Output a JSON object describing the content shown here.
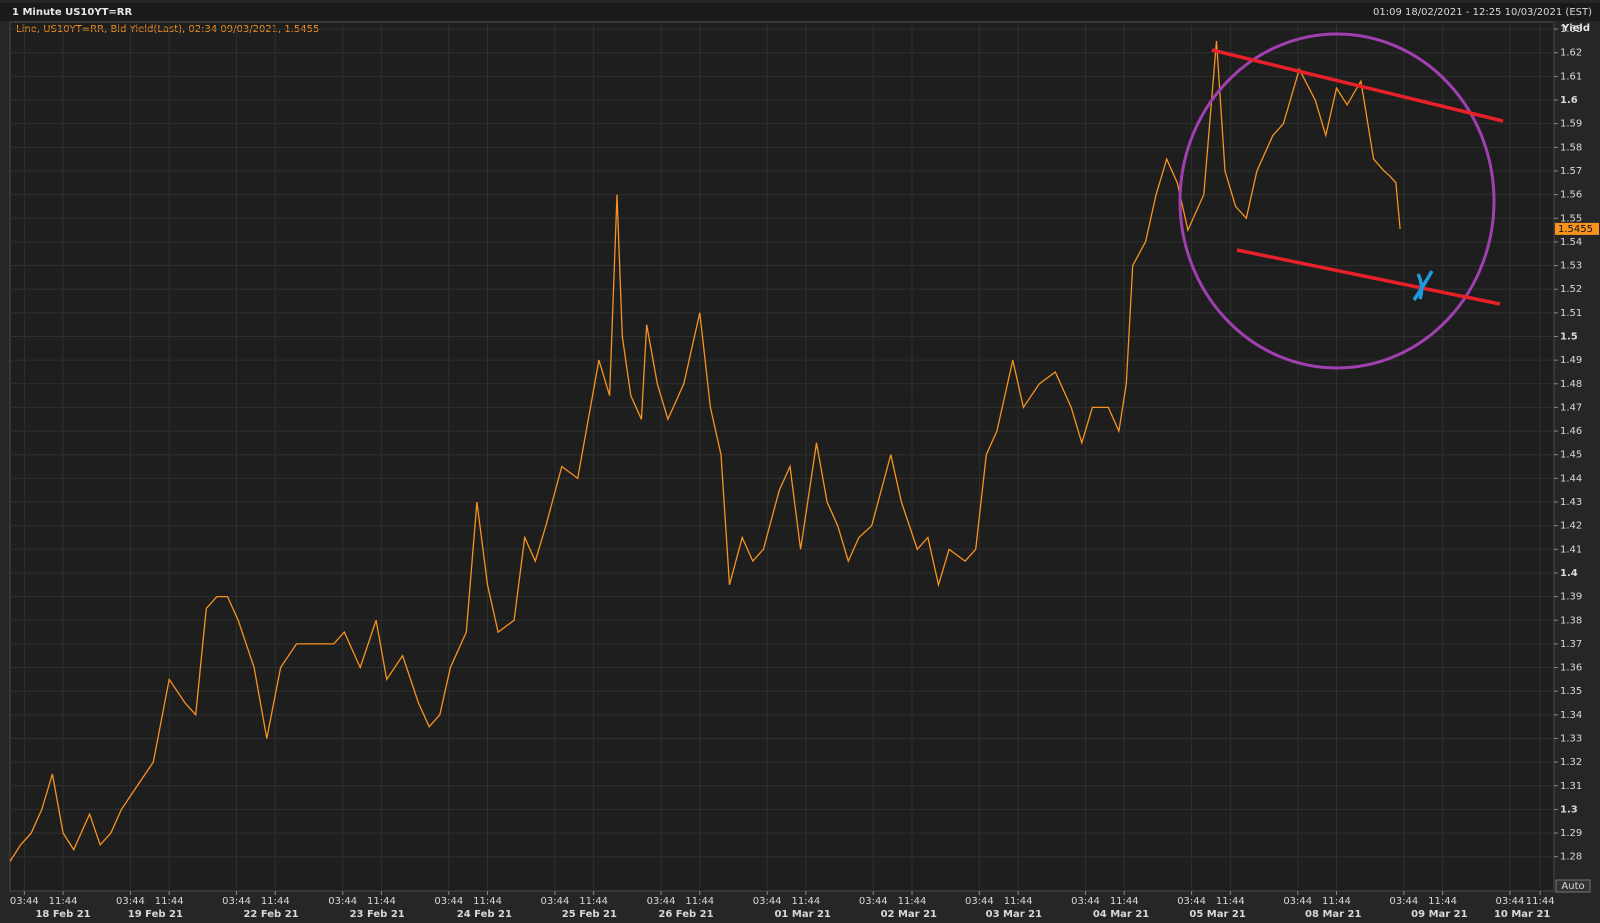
{
  "chart_data": {
    "type": "line",
    "title": "1 Minute US10YT=RR",
    "range_text": "01:09 18/02/2021 - 12:25 10/03/2021 (EST)",
    "y_axis_label": "Yield",
    "button_label": "Auto",
    "grid": true,
    "x": [
      0,
      0.1,
      0.2,
      0.3,
      0.4,
      0.5,
      0.6,
      0.75,
      0.85,
      0.95,
      1.05,
      1.2,
      1.35,
      1.5,
      1.65,
      1.75,
      1.85,
      1.95,
      2.05,
      2.15,
      2.3,
      2.42,
      2.55,
      2.7,
      2.85,
      2.98,
      3.05,
      3.15,
      3.3,
      3.45,
      3.55,
      3.7,
      3.85,
      3.95,
      4.05,
      4.15,
      4.3,
      4.4,
      4.5,
      4.6,
      4.75,
      4.85,
      4.95,
      5.05,
      5.2,
      5.35,
      5.45,
      5.55,
      5.65,
      5.72,
      5.77,
      5.85,
      5.95,
      6.0,
      6.1,
      6.2,
      6.35,
      6.5,
      6.6,
      6.7,
      6.78,
      6.9,
      7.0,
      7.1,
      7.25,
      7.35,
      7.45,
      7.6,
      7.7,
      7.8,
      7.9,
      8.0,
      8.12,
      8.3,
      8.4,
      8.55,
      8.65,
      8.75,
      8.85,
      9.0,
      9.1,
      9.2,
      9.3,
      9.45,
      9.55,
      9.7,
      9.85,
      10.0,
      10.1,
      10.2,
      10.35,
      10.45,
      10.52,
      10.58,
      10.7,
      10.8,
      10.9,
      11.0,
      11.1,
      11.25,
      11.37,
      11.45,
      11.55,
      11.65,
      11.75,
      11.9,
      12.0,
      12.15,
      12.3,
      12.4,
      12.5,
      12.6,
      12.73,
      12.85,
      12.95,
      13.0,
      13.06,
      13.1
    ],
    "series": [
      {
        "name": "Line, US10YT=RR, Bid Yield(Last), 02:34 09/03/2021, 1.5455",
        "color": "#f7931e",
        "values": [
          1.278,
          1.285,
          1.29,
          1.3,
          1.315,
          1.29,
          1.283,
          1.298,
          1.285,
          1.29,
          1.3,
          1.31,
          1.32,
          1.355,
          1.345,
          1.34,
          1.385,
          1.39,
          1.39,
          1.38,
          1.36,
          1.33,
          1.36,
          1.37,
          1.37,
          1.37,
          1.37,
          1.375,
          1.36,
          1.38,
          1.355,
          1.365,
          1.345,
          1.335,
          1.34,
          1.36,
          1.375,
          1.43,
          1.395,
          1.375,
          1.38,
          1.415,
          1.405,
          1.42,
          1.445,
          1.44,
          1.465,
          1.49,
          1.475,
          1.56,
          1.5,
          1.475,
          1.465,
          1.505,
          1.48,
          1.465,
          1.48,
          1.51,
          1.47,
          1.45,
          1.395,
          1.415,
          1.405,
          1.41,
          1.435,
          1.445,
          1.41,
          1.455,
          1.43,
          1.42,
          1.405,
          1.415,
          1.42,
          1.45,
          1.43,
          1.41,
          1.415,
          1.395,
          1.41,
          1.405,
          1.41,
          1.45,
          1.46,
          1.49,
          1.47,
          1.48,
          1.485,
          1.47,
          1.455,
          1.47,
          1.47,
          1.46,
          1.48,
          1.53,
          1.54,
          1.56,
          1.575,
          1.565,
          1.545,
          1.56,
          1.625,
          1.57,
          1.555,
          1.55,
          1.57,
          1.585,
          1.59,
          1.613,
          1.6,
          1.585,
          1.605,
          1.598,
          1.608,
          1.575,
          1.57,
          1.568,
          1.565,
          1.5455
        ]
      }
    ],
    "xlim": [
      0,
      14.55
    ],
    "ylim": [
      1.2655,
      1.633
    ],
    "yticks": [
      1.28,
      1.29,
      1.3,
      1.31,
      1.32,
      1.33,
      1.34,
      1.35,
      1.36,
      1.37,
      1.38,
      1.39,
      1.4,
      1.41,
      1.42,
      1.43,
      1.44,
      1.45,
      1.46,
      1.47,
      1.48,
      1.49,
      1.5,
      1.51,
      1.52,
      1.53,
      1.54,
      1.55,
      1.56,
      1.57,
      1.58,
      1.59,
      1.6,
      1.61,
      1.62,
      1.63
    ],
    "xticks": [
      {
        "value": 0.135,
        "label": "03:44"
      },
      {
        "value": 0.5,
        "label": "11:44"
      },
      {
        "value": 1.135,
        "label": "03:44"
      },
      {
        "value": 1.5,
        "label": "11:44"
      },
      {
        "value": 2.135,
        "label": "03:44"
      },
      {
        "value": 2.5,
        "label": "11:44"
      },
      {
        "value": 3.135,
        "label": "03:44"
      },
      {
        "value": 3.5,
        "label": "11:44"
      },
      {
        "value": 4.135,
        "label": "03:44"
      },
      {
        "value": 4.5,
        "label": "11:44"
      },
      {
        "value": 5.135,
        "label": "03:44"
      },
      {
        "value": 5.5,
        "label": "11:44"
      },
      {
        "value": 6.135,
        "label": "03:44"
      },
      {
        "value": 6.5,
        "label": "11:44"
      },
      {
        "value": 7.135,
        "label": "03:44"
      },
      {
        "value": 7.5,
        "label": "11:44"
      },
      {
        "value": 8.135,
        "label": "03:44"
      },
      {
        "value": 8.5,
        "label": "11:44"
      },
      {
        "value": 9.135,
        "label": "03:44"
      },
      {
        "value": 9.5,
        "label": "11:44"
      },
      {
        "value": 10.135,
        "label": "03:44"
      },
      {
        "value": 10.5,
        "label": "11:44"
      },
      {
        "value": 11.135,
        "label": "03:44"
      },
      {
        "value": 11.5,
        "label": "11:44"
      },
      {
        "value": 12.135,
        "label": "03:44"
      },
      {
        "value": 12.5,
        "label": "11:44"
      },
      {
        "value": 13.135,
        "label": "03:44"
      },
      {
        "value": 13.5,
        "label": "11:44"
      },
      {
        "value": 14.135,
        "label": "03:44"
      },
      {
        "value": 14.42,
        "label": "11:44"
      }
    ],
    "date_ticks": [
      {
        "value": 0.5,
        "label": "18 Feb 21"
      },
      {
        "value": 1.37,
        "label": "19 Feb 21"
      },
      {
        "value": 2.46,
        "label": "22 Feb 21"
      },
      {
        "value": 3.46,
        "label": "23 Feb 21"
      },
      {
        "value": 4.47,
        "label": "24 Feb 21"
      },
      {
        "value": 5.46,
        "label": "25 Feb 21"
      },
      {
        "value": 6.37,
        "label": "26 Feb 21"
      },
      {
        "value": 7.47,
        "label": "01 Mar 21"
      },
      {
        "value": 8.47,
        "label": "02 Mar 21"
      },
      {
        "value": 9.46,
        "label": "03 Mar 21"
      },
      {
        "value": 10.47,
        "label": "04 Mar 21"
      },
      {
        "value": 11.38,
        "label": "05 Mar 21"
      },
      {
        "value": 12.47,
        "label": "08 Mar 21"
      },
      {
        "value": 13.47,
        "label": "09 Mar 21"
      },
      {
        "value": 14.25,
        "label": "10 Mar 21"
      }
    ]
  }
}
